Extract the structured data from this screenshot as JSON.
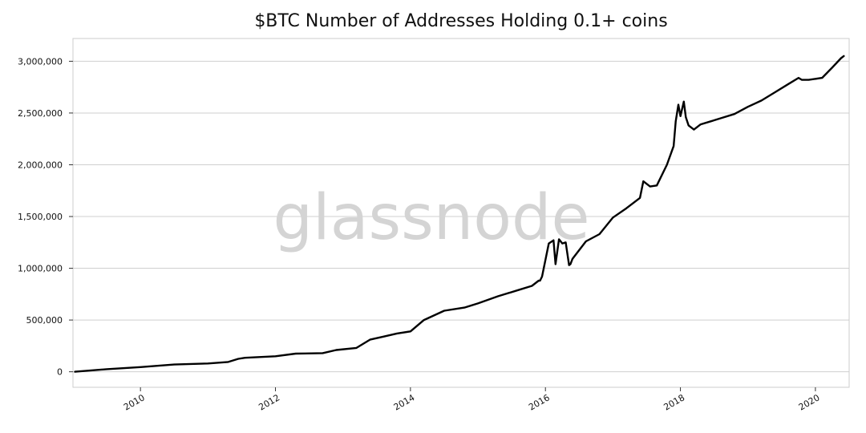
{
  "watermark": "glassnode",
  "chart_data": {
    "type": "line",
    "title": "$BTC Number of Addresses Holding 0.1+ coins",
    "xlabel": "",
    "ylabel": "",
    "xlim": [
      2009.0,
      2020.5
    ],
    "ylim": [
      -150000,
      3220000
    ],
    "grid": "horizontal",
    "line_color": "#000000",
    "x_ticks": [
      2010,
      2012,
      2014,
      2016,
      2018,
      2020
    ],
    "x_tick_labels": [
      "2010",
      "2012",
      "2014",
      "2016",
      "2018",
      "2020"
    ],
    "y_ticks": [
      0,
      500000,
      1000000,
      1500000,
      2000000,
      2500000,
      3000000
    ],
    "y_tick_labels": [
      "0",
      "500,000",
      "1,000,000",
      "1,500,000",
      "2,000,000",
      "2,500,000",
      "3,000,000"
    ],
    "series": [
      {
        "name": "",
        "x": [
          2009.03,
          2009.5,
          2010.0,
          2010.5,
          2011.0,
          2011.3,
          2011.45,
          2011.55,
          2011.7,
          2012.0,
          2012.3,
          2012.7,
          2012.9,
          2013.2,
          2013.4,
          2013.6,
          2013.8,
          2014.0,
          2014.2,
          2014.5,
          2014.8,
          2015.0,
          2015.3,
          2015.6,
          2015.8,
          2015.9,
          2015.92,
          2015.95,
          2016.05,
          2016.12,
          2016.15,
          2016.2,
          2016.25,
          2016.3,
          2016.35,
          2016.37,
          2016.4,
          2016.6,
          2016.8,
          2017.0,
          2017.2,
          2017.4,
          2017.45,
          2017.55,
          2017.65,
          2017.8,
          2017.9,
          2017.93,
          2017.97,
          2018.0,
          2018.05,
          2018.08,
          2018.12,
          2018.2,
          2018.3,
          2018.45,
          2018.6,
          2018.8,
          2019.0,
          2019.2,
          2019.4,
          2019.6,
          2019.75,
          2019.8,
          2019.9,
          2020.1,
          2020.25,
          2020.38,
          2020.42
        ],
        "y": [
          0,
          25000,
          45000,
          70000,
          80000,
          95000,
          125000,
          135000,
          140000,
          150000,
          175000,
          180000,
          210000,
          230000,
          310000,
          340000,
          370000,
          390000,
          500000,
          590000,
          620000,
          660000,
          730000,
          790000,
          830000,
          880000,
          880000,
          920000,
          1240000,
          1270000,
          1040000,
          1280000,
          1240000,
          1250000,
          1030000,
          1040000,
          1090000,
          1260000,
          1330000,
          1490000,
          1580000,
          1680000,
          1840000,
          1790000,
          1800000,
          2000000,
          2180000,
          2420000,
          2580000,
          2470000,
          2610000,
          2460000,
          2380000,
          2340000,
          2390000,
          2420000,
          2450000,
          2490000,
          2560000,
          2620000,
          2700000,
          2780000,
          2840000,
          2820000,
          2820000,
          2840000,
          2940000,
          3030000,
          3050000
        ]
      }
    ]
  }
}
